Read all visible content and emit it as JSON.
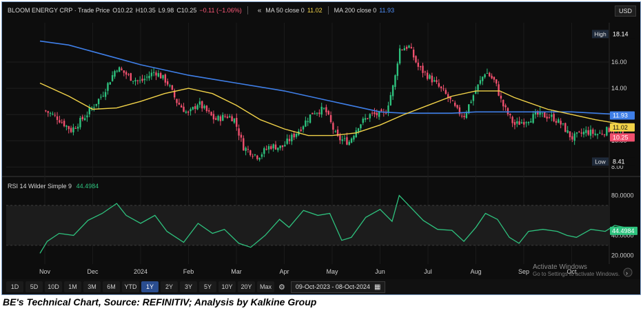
{
  "legend": {
    "title": "BLOOM ENERGY CRP · Trade Price",
    "o": "O10.22",
    "h": "H10.35",
    "l": "L9.98",
    "c": "C10.25",
    "change": "−0.11 (−1.06%)",
    "collapse": "«",
    "ma50_label": "MA 50 close 0",
    "ma50_value": "11.02",
    "ma200_label": "MA 200 close 0",
    "ma200_value": "11.93"
  },
  "currency": "USD",
  "rsi_legend": {
    "label": "RSI 14 Wilder Simple 9",
    "value": "44.4984"
  },
  "toolbar": {
    "ranges": [
      "1D",
      "5D",
      "10D",
      "1M",
      "3M",
      "6M",
      "YTD",
      "1Y",
      "2Y",
      "3Y",
      "5Y",
      "10Y",
      "20Y",
      "Max"
    ],
    "active": "1Y",
    "settings_icon": "settings-gear-icon",
    "date_from": "09-Oct-2023",
    "date_to": "08-Oct-2024",
    "date_separator": " - ",
    "calendar_icon": "calendar-icon"
  },
  "watermark": {
    "line1": "Activate Windows",
    "line2": "Go to Settings to activate Windows."
  },
  "caption": "BE's Technical Chart, Source: REFINITIV; Analysis by Kalkine Group",
  "colors": {
    "background": "#0d0d0d",
    "up": "#2ec27e",
    "down": "#f0506e",
    "ma50": "#f2d349",
    "ma200": "#3f7fe8",
    "rsi": "#2ec27e",
    "accent": "#2a4d8f"
  },
  "chart_data": [
    {
      "type": "candlestick",
      "title": "BLOOM ENERGY CRP · Trade Price",
      "x_axis_labels": [
        "Nov",
        "Dec",
        "2024",
        "Feb",
        "Mar",
        "Apr",
        "May",
        "Jun",
        "Jul",
        "Aug",
        "Sep",
        "Oct"
      ],
      "y_axis_labels": [
        "8.00",
        "10.00",
        "12.00",
        "14.00",
        "16.00"
      ],
      "ylim": [
        7.8,
        19.0
      ],
      "price_tags": [
        {
          "name": "High",
          "value": "18.14"
        },
        {
          "name": "MA200",
          "value": "11.93"
        },
        {
          "name": "MA50",
          "value": "11.02"
        },
        {
          "name": "Last",
          "value": "10.25"
        },
        {
          "name": "Low",
          "value": "8.41"
        }
      ],
      "close_anchors": [
        {
          "month": 0.0,
          "value": 12.3
        },
        {
          "month": 0.25,
          "value": 11.8
        },
        {
          "month": 0.55,
          "value": 10.8
        },
        {
          "month": 0.85,
          "value": 11.9
        },
        {
          "month": 1.2,
          "value": 13.5
        },
        {
          "month": 1.5,
          "value": 15.6
        },
        {
          "month": 1.8,
          "value": 14.8
        },
        {
          "month": 2.0,
          "value": 14.5
        },
        {
          "month": 2.3,
          "value": 15.3
        },
        {
          "month": 2.55,
          "value": 14.5
        },
        {
          "month": 2.75,
          "value": 13.0
        },
        {
          "month": 3.0,
          "value": 12.0
        },
        {
          "month": 3.2,
          "value": 12.9
        },
        {
          "month": 3.55,
          "value": 11.6
        },
        {
          "month": 3.8,
          "value": 11.9
        },
        {
          "month": 3.95,
          "value": 11.7
        },
        {
          "month": 4.15,
          "value": 9.5
        },
        {
          "month": 4.45,
          "value": 8.8
        },
        {
          "month": 4.7,
          "value": 9.6
        },
        {
          "month": 4.95,
          "value": 9.5
        },
        {
          "month": 5.3,
          "value": 10.8
        },
        {
          "month": 5.6,
          "value": 12.2
        },
        {
          "month": 5.85,
          "value": 12.4
        },
        {
          "month": 6.1,
          "value": 10.2
        },
        {
          "month": 6.35,
          "value": 9.9
        },
        {
          "month": 6.55,
          "value": 11.2
        },
        {
          "month": 6.8,
          "value": 12.0
        },
        {
          "month": 7.1,
          "value": 12.0
        },
        {
          "month": 7.3,
          "value": 14.5
        },
        {
          "month": 7.4,
          "value": 17.0
        },
        {
          "month": 7.6,
          "value": 17.2
        },
        {
          "month": 7.8,
          "value": 15.6
        },
        {
          "month": 8.1,
          "value": 14.6
        },
        {
          "month": 8.4,
          "value": 13.4
        },
        {
          "month": 8.6,
          "value": 12.3
        },
        {
          "month": 8.75,
          "value": 11.9
        },
        {
          "month": 8.95,
          "value": 13.5
        },
        {
          "month": 9.2,
          "value": 15.3
        },
        {
          "month": 9.4,
          "value": 14.5
        },
        {
          "month": 9.55,
          "value": 12.8
        },
        {
          "month": 9.8,
          "value": 11.2
        },
        {
          "month": 10.0,
          "value": 11.5
        },
        {
          "month": 10.3,
          "value": 12.0
        },
        {
          "month": 10.6,
          "value": 11.8
        },
        {
          "month": 10.8,
          "value": 11.2
        },
        {
          "month": 11.0,
          "value": 10.2
        },
        {
          "month": 11.3,
          "value": 10.7
        },
        {
          "month": 11.55,
          "value": 10.5
        },
        {
          "month": 11.8,
          "value": 10.9
        },
        {
          "month": 12.0,
          "value": 10.6
        },
        {
          "month": 12.2,
          "value": 10.25
        }
      ],
      "series": [
        {
          "name": "MA 50 close 0",
          "points": [
            [
              -0.1,
              14.4
            ],
            [
              0.5,
              13.4
            ],
            [
              1.0,
              12.4
            ],
            [
              1.5,
              12.5
            ],
            [
              2.0,
              13.0
            ],
            [
              2.5,
              13.6
            ],
            [
              3.0,
              14.0
            ],
            [
              3.5,
              13.6
            ],
            [
              4.0,
              12.7
            ],
            [
              4.5,
              11.6
            ],
            [
              5.0,
              10.9
            ],
            [
              5.5,
              10.4
            ],
            [
              6.0,
              10.4
            ],
            [
              6.5,
              10.6
            ],
            [
              7.0,
              11.2
            ],
            [
              7.5,
              12.0
            ],
            [
              8.0,
              12.7
            ],
            [
              8.5,
              13.4
            ],
            [
              9.0,
              13.8
            ],
            [
              9.5,
              13.8
            ],
            [
              9.8,
              13.3
            ],
            [
              10.5,
              12.4
            ],
            [
              11.0,
              12.0
            ],
            [
              11.5,
              11.6
            ],
            [
              12.0,
              11.3
            ],
            [
              12.25,
              11.02
            ]
          ]
        },
        {
          "name": "MA 200 close 0",
          "points": [
            [
              -0.1,
              17.6
            ],
            [
              0.5,
              17.3
            ],
            [
              1.0,
              16.8
            ],
            [
              1.5,
              16.3
            ],
            [
              2.0,
              15.8
            ],
            [
              2.5,
              15.4
            ],
            [
              3.0,
              15.0
            ],
            [
              3.5,
              14.7
            ],
            [
              4.0,
              14.4
            ],
            [
              4.5,
              14.1
            ],
            [
              5.0,
              13.8
            ],
            [
              5.5,
              13.4
            ],
            [
              6.0,
              13.0
            ],
            [
              6.5,
              12.6
            ],
            [
              7.0,
              12.2
            ],
            [
              7.5,
              12.1
            ],
            [
              8.0,
              12.1
            ],
            [
              8.5,
              12.1
            ],
            [
              9.0,
              12.2
            ],
            [
              9.5,
              12.2
            ],
            [
              10.0,
              12.2
            ],
            [
              10.5,
              12.2
            ],
            [
              11.0,
              12.2
            ],
            [
              11.5,
              12.1
            ],
            [
              12.0,
              12.0
            ],
            [
              12.25,
              11.93
            ]
          ]
        }
      ]
    },
    {
      "type": "line",
      "title": "RSI 14 Wilder Simple 9",
      "y_axis_labels": [
        "20.0000",
        "40.0000",
        "80.0000"
      ],
      "ylim": [
        14,
        90
      ],
      "bands": [
        30,
        70
      ],
      "series": [
        {
          "name": "RSI 14 Wilder Simple 9",
          "points": [
            [
              -0.1,
              22
            ],
            [
              0.05,
              34
            ],
            [
              0.3,
              42
            ],
            [
              0.6,
              40
            ],
            [
              0.9,
              55
            ],
            [
              1.2,
              62
            ],
            [
              1.5,
              72
            ],
            [
              1.7,
              60
            ],
            [
              2.0,
              52
            ],
            [
              2.3,
              60
            ],
            [
              2.55,
              44
            ],
            [
              2.9,
              33
            ],
            [
              3.2,
              52
            ],
            [
              3.5,
              42
            ],
            [
              3.75,
              46
            ],
            [
              4.05,
              32
            ],
            [
              4.3,
              28
            ],
            [
              4.6,
              40
            ],
            [
              4.9,
              56
            ],
            [
              5.1,
              48
            ],
            [
              5.4,
              65
            ],
            [
              5.7,
              60
            ],
            [
              5.95,
              62
            ],
            [
              6.2,
              35
            ],
            [
              6.4,
              38
            ],
            [
              6.7,
              58
            ],
            [
              7.0,
              66
            ],
            [
              7.25,
              54
            ],
            [
              7.4,
              80
            ],
            [
              7.6,
              70
            ],
            [
              7.9,
              55
            ],
            [
              8.2,
              46
            ],
            [
              8.5,
              45
            ],
            [
              8.75,
              34
            ],
            [
              9.0,
              48
            ],
            [
              9.2,
              62
            ],
            [
              9.45,
              56
            ],
            [
              9.7,
              38
            ],
            [
              9.9,
              32
            ],
            [
              10.1,
              44
            ],
            [
              10.4,
              46
            ],
            [
              10.7,
              44
            ],
            [
              10.9,
              40
            ],
            [
              11.1,
              38
            ],
            [
              11.4,
              46
            ],
            [
              11.7,
              44
            ],
            [
              11.9,
              50
            ],
            [
              12.1,
              48
            ],
            [
              12.25,
              44.5
            ]
          ]
        }
      ]
    }
  ]
}
